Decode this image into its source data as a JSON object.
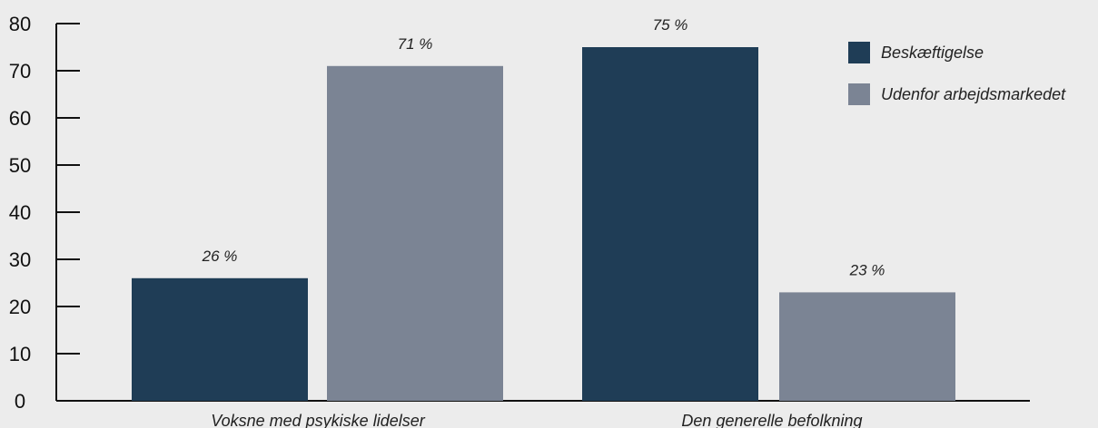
{
  "chart_data": {
    "type": "bar",
    "categories": [
      "Voksne med psykiske lidelser",
      "Den generelle befolkning"
    ],
    "series": [
      {
        "name": "Beskæftigelse",
        "values": [
          26,
          75
        ],
        "labels": [
          "26 %",
          "75 %"
        ],
        "color": "#1f3d56"
      },
      {
        "name": "Udenfor arbejdsmarkedet",
        "values": [
          71,
          23
        ],
        "labels": [
          "71 %",
          "23 %"
        ],
        "color": "#7b8494"
      }
    ],
    "title": "",
    "xlabel": "",
    "ylabel": "",
    "ylim": [
      0,
      80
    ],
    "yticks": [
      0,
      10,
      20,
      30,
      40,
      50,
      60,
      70,
      80
    ],
    "grid": false,
    "legend_position": "top-right"
  },
  "colors": {
    "background": "#ececec",
    "axis": "#111111"
  }
}
